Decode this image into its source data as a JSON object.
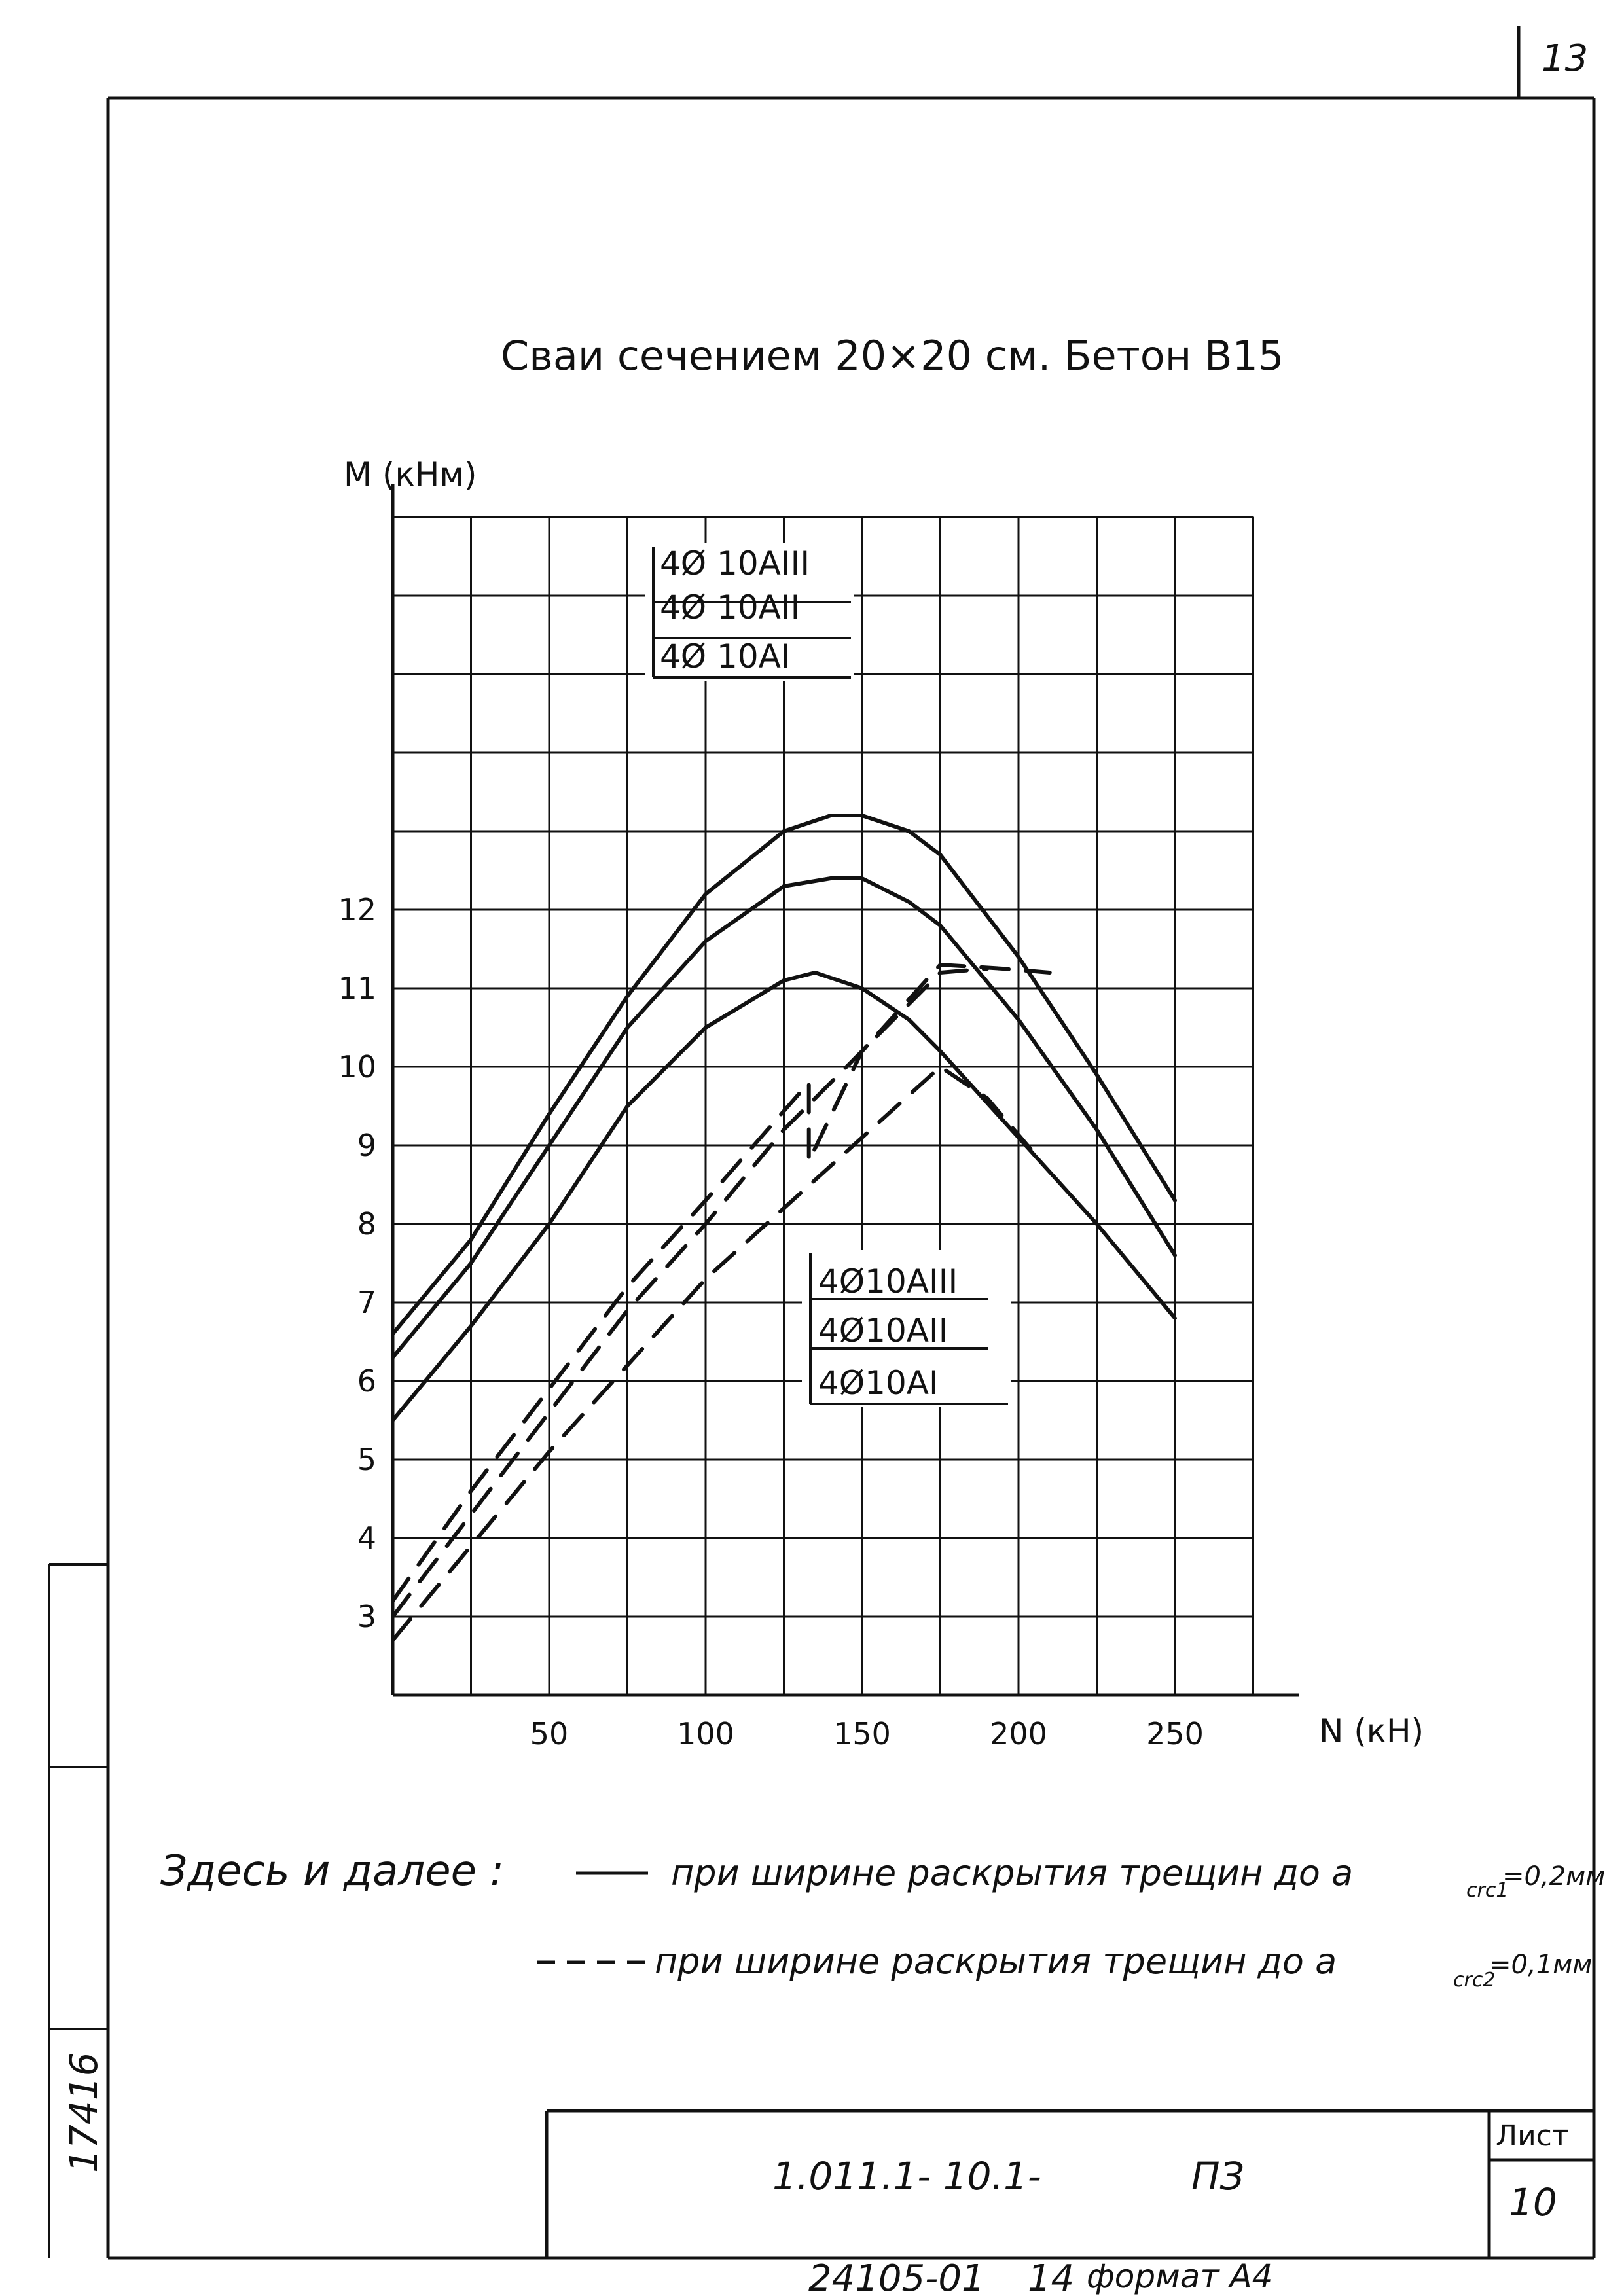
{
  "sheet": {
    "page_number": "13",
    "inventory_number": "17416",
    "stamp_sheet_label": "Лист",
    "stamp_sheet_number": "10",
    "document_code": "1.011.1- 10.1-",
    "document_suffix": "ПЗ",
    "footer_order": "24105-01",
    "footer_copy": "14",
    "footer_format": "формат А4"
  },
  "notes": {
    "intro": "Здесь и далее :",
    "solid_text": "при ширине раскрытия трещин до a",
    "solid_sub": "crc1",
    "solid_value": "=0,2мм",
    "dashed_text": "при ширине раскрытия трещин до a",
    "dashed_sub": "crc2",
    "dashed_value": "=0,1мм"
  },
  "colors": {
    "ink": "#111111",
    "paper": "#ffffff"
  },
  "chart_data": {
    "type": "line",
    "title": "Сваи сечением 20×20 см. Бетон В15",
    "xlabel": "N (кН)",
    "ylabel": "M (кНм)",
    "xlim": [
      0,
      275
    ],
    "ylim": [
      2,
      17
    ],
    "x_ticks": [
      50,
      100,
      150,
      200,
      250
    ],
    "y_ticks": [
      3,
      4,
      5,
      6,
      7,
      8,
      9,
      10,
      11,
      12
    ],
    "grid": true,
    "legend_top": [
      "4Ø 10АIII",
      "4Ø 10АII",
      "4Ø 10АI"
    ],
    "legend_bottom": [
      "4Ø10АIII",
      "4Ø10АII",
      "4Ø10АI"
    ],
    "series": [
      {
        "name": "4Ø 10АIII",
        "style": "solid",
        "x": [
          0,
          25,
          50,
          75,
          100,
          125,
          140,
          150,
          165,
          175,
          200,
          225,
          250
        ],
        "y": [
          6.6,
          7.8,
          9.4,
          10.9,
          12.2,
          13.0,
          13.2,
          13.2,
          13.0,
          12.7,
          11.4,
          9.9,
          8.3
        ]
      },
      {
        "name": "4Ø 10АII",
        "style": "solid",
        "x": [
          0,
          25,
          50,
          75,
          100,
          125,
          140,
          150,
          165,
          175,
          200,
          225,
          250
        ],
        "y": [
          6.3,
          7.5,
          9.0,
          10.5,
          11.6,
          12.3,
          12.4,
          12.4,
          12.1,
          11.8,
          10.6,
          9.2,
          7.6
        ]
      },
      {
        "name": "4Ø 10АI",
        "style": "solid",
        "x": [
          0,
          25,
          50,
          75,
          100,
          125,
          135,
          150,
          165,
          175,
          200,
          225,
          250
        ],
        "y": [
          5.5,
          6.7,
          8.0,
          9.5,
          10.5,
          11.1,
          11.2,
          11.0,
          10.6,
          10.2,
          9.1,
          8.0,
          6.8
        ]
      },
      {
        "name": "4Ø10АIII",
        "style": "dashed",
        "x": [
          0,
          25,
          50,
          75,
          100,
          133,
          133,
          150,
          175,
          195,
          210
        ],
        "y": [
          3.2,
          4.6,
          5.9,
          7.2,
          8.3,
          9.8,
          8.8,
          10.2,
          11.3,
          11.25,
          11.2
        ]
      },
      {
        "name": "4Ø10АII",
        "style": "dashed",
        "x": [
          0,
          25,
          50,
          75,
          100,
          125,
          150,
          175,
          190
        ],
        "y": [
          3.0,
          4.3,
          5.6,
          6.9,
          8.0,
          9.2,
          10.2,
          11.2,
          11.25
        ]
      },
      {
        "name": "4Ø10АI",
        "style": "dashed",
        "x": [
          0,
          25,
          50,
          75,
          100,
          125,
          150,
          175,
          190,
          205
        ],
        "y": [
          2.7,
          3.9,
          5.1,
          6.2,
          7.3,
          8.2,
          9.1,
          10.0,
          9.6,
          8.9
        ]
      }
    ]
  }
}
